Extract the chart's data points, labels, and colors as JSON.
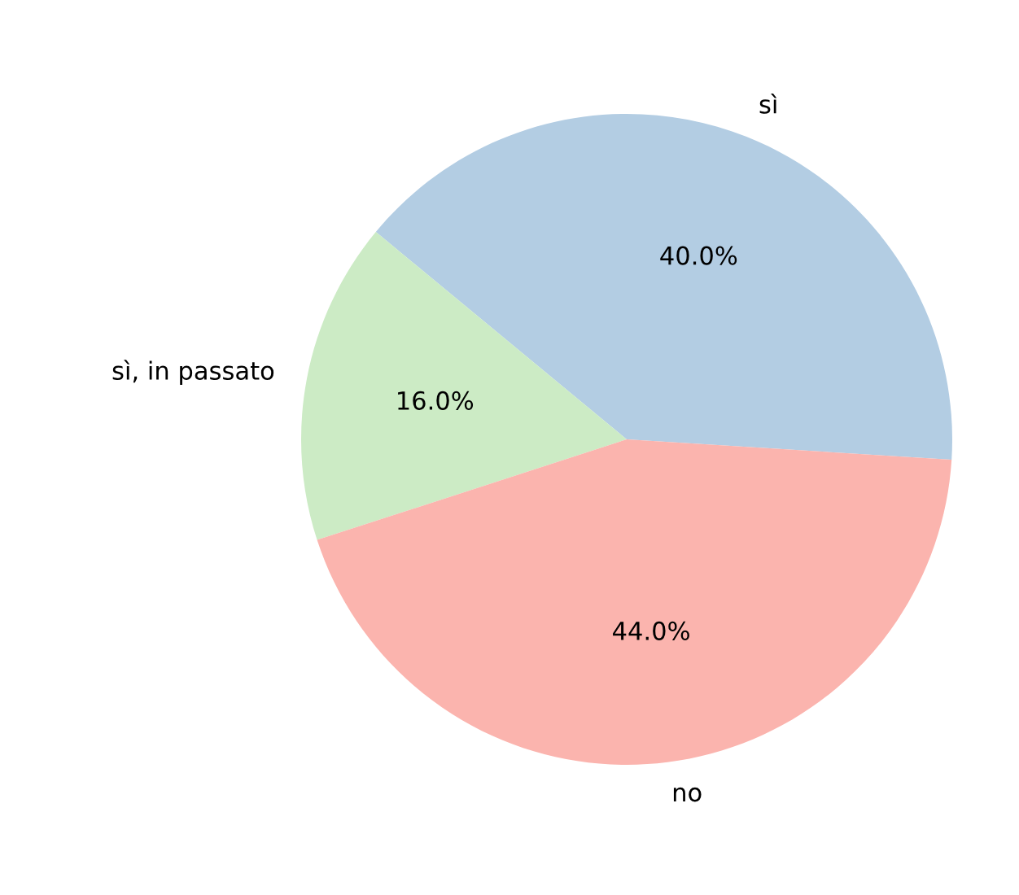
{
  "chart_data": {
    "type": "pie",
    "categories": [
      "sì",
      "sì, in passato",
      "no"
    ],
    "values": [
      40,
      16,
      44
    ],
    "colors": [
      "#b3cde3",
      "#ccebc5",
      "#fbb4ae"
    ],
    "value_labels": [
      "40.0%",
      "16.0%",
      "44.0%"
    ],
    "legend": false
  }
}
